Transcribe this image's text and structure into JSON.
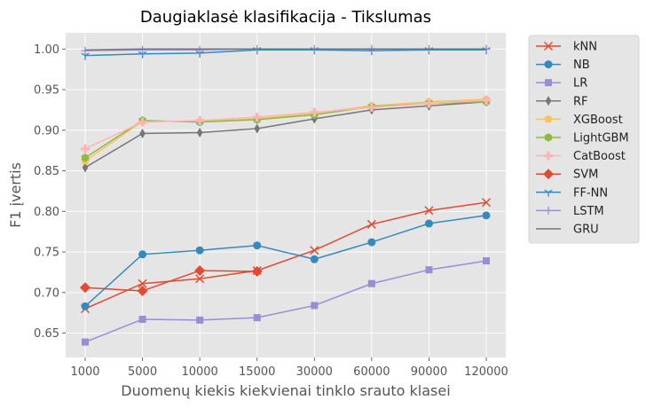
{
  "chart_data": {
    "type": "line",
    "title": "Daugiaklasė klasifikacija - Tikslumas",
    "xlabel": "Duomenų kiekis kiekvienai tinklo srauto klasei",
    "ylabel": "F1 įvertis",
    "categories": [
      "1000",
      "5000",
      "10000",
      "15000",
      "30000",
      "60000",
      "90000",
      "120000"
    ],
    "ylim": [
      0.62,
      1.02
    ],
    "yticks": [
      "0.65",
      "0.70",
      "0.75",
      "0.80",
      "0.85",
      "0.90",
      "0.95",
      "1.00"
    ],
    "grid": true,
    "legend_position": "outside-right",
    "series": [
      {
        "name": "kNN",
        "color": "#E24A33",
        "marker": "x",
        "values": [
          0.68,
          0.711,
          0.717,
          0.727,
          0.752,
          0.784,
          0.801,
          0.811
        ]
      },
      {
        "name": "NB",
        "color": "#348ABD",
        "marker": "circle",
        "values": [
          0.683,
          0.747,
          0.752,
          0.758,
          0.741,
          0.762,
          0.785,
          0.795
        ]
      },
      {
        "name": "LR",
        "color": "#988ED5",
        "marker": "square",
        "values": [
          0.639,
          0.667,
          0.666,
          0.669,
          0.684,
          0.711,
          0.728,
          0.739
        ]
      },
      {
        "name": "RF",
        "color": "#777777",
        "marker": "thin-diamond",
        "values": [
          0.854,
          0.896,
          0.897,
          0.902,
          0.914,
          0.925,
          0.93,
          0.935
        ]
      },
      {
        "name": "XGBoost",
        "color": "#FBC15E",
        "marker": "pentagon",
        "values": [
          0.862,
          0.911,
          0.911,
          0.914,
          0.921,
          0.93,
          0.935,
          0.938
        ]
      },
      {
        "name": "LightGBM",
        "color": "#8EBA42",
        "marker": "hexagon",
        "values": [
          0.866,
          0.912,
          0.91,
          0.913,
          0.919,
          0.929,
          0.933,
          0.935
        ]
      },
      {
        "name": "CatBoost",
        "color": "#FFB5B8",
        "marker": "plus-filled",
        "values": [
          0.877,
          0.91,
          0.912,
          0.916,
          0.922,
          0.928,
          0.933,
          0.937
        ]
      },
      {
        "name": "SVM",
        "color": "#E24A33",
        "marker": "diamond",
        "values": [
          0.706,
          0.702,
          0.727,
          0.726,
          null,
          null,
          null,
          null
        ]
      },
      {
        "name": "FF-NN",
        "color": "#348ABD",
        "marker": "tri-down",
        "values": [
          0.992,
          0.994,
          0.995,
          0.999,
          0.999,
          0.998,
          0.999,
          0.999
        ]
      },
      {
        "name": "LSTM",
        "color": "#988ED5",
        "marker": "plus",
        "values": [
          0.998,
          0.999,
          0.999,
          1.0,
          1.0,
          1.0,
          1.0,
          1.0
        ]
      },
      {
        "name": "GRU",
        "color": "#777777",
        "marker": "none",
        "values": [
          0.999,
          1.0,
          1.0,
          1.0,
          1.0,
          1.0,
          1.0,
          1.0
        ]
      }
    ]
  }
}
